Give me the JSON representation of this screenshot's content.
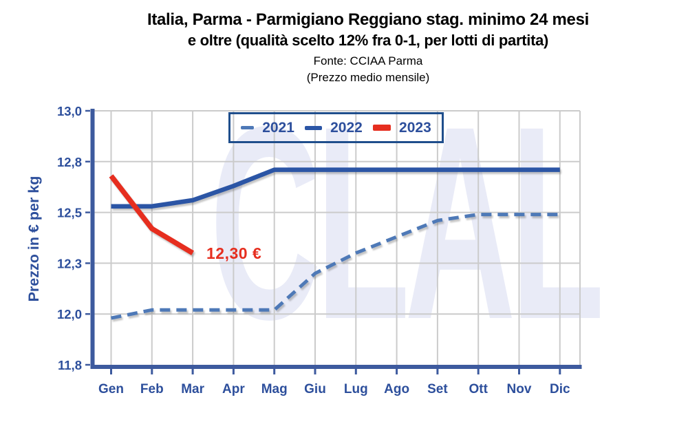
{
  "header": {
    "title_line1": "Italia, Parma - Parmigiano Reggiano stag. minimo 24 mesi",
    "title_line2": "e oltre (qualità scelto 12% fra 0-1, per lotti di partita)",
    "source": "Fonte: CCIAA Parma",
    "subtitle": "(Prezzo medio mensile)"
  },
  "watermark": {
    "text": "CLAL",
    "color": "#E9EBF7"
  },
  "annotation": {
    "text": "12,30 €",
    "color": "#E62E1F",
    "refers_to": "2023 Mar value"
  },
  "colors": {
    "axis": "#3D5A9E",
    "grid": "#CBCBCB",
    "tick_text": "#2D4F9C",
    "legend_border": "#1F4E8C",
    "title_text": "#000000"
  },
  "chart_data": {
    "type": "line",
    "title": "Italia, Parma - Parmigiano Reggiano stag. minimo 24 mesi e oltre (qualità scelto 12% fra 0-1, per lotti di partita)",
    "source": "Fonte: CCIAA Parma",
    "subtitle": "(Prezzo medio mensile)",
    "ylabel": "Prezzo in € per kg",
    "xlabel": "",
    "categories": [
      "Gen",
      "Feb",
      "Mar",
      "Apr",
      "Mag",
      "Giu",
      "Lug",
      "Ago",
      "Set",
      "Ott",
      "Nov",
      "Dic"
    ],
    "ylim": [
      11.75,
      13.0
    ],
    "grid": true,
    "legend_position": "top-left-inside",
    "y_ticks": [
      {
        "value": 13.0,
        "label": "13,0"
      },
      {
        "value": 12.75,
        "label": "12,8"
      },
      {
        "value": 12.5,
        "label": "12,5"
      },
      {
        "value": 12.25,
        "label": "12,3"
      },
      {
        "value": 12.0,
        "label": "12,0"
      },
      {
        "value": 11.75,
        "label": "11,8"
      }
    ],
    "series": [
      {
        "name": "2021",
        "color": "#4E79B7",
        "line_style": "dashed",
        "values": [
          11.98,
          12.02,
          12.02,
          12.02,
          12.02,
          12.2,
          12.3,
          12.38,
          12.46,
          12.49,
          12.49,
          12.49
        ]
      },
      {
        "name": "2022",
        "color": "#2B55A5",
        "line_style": "solid",
        "values": [
          12.53,
          12.53,
          12.56,
          12.63,
          12.71,
          12.71,
          12.71,
          12.71,
          12.71,
          12.71,
          12.71,
          12.71
        ]
      },
      {
        "name": "2023",
        "color": "#E62E1F",
        "line_style": "solid",
        "values": [
          12.68,
          12.42,
          12.3
        ]
      }
    ]
  }
}
